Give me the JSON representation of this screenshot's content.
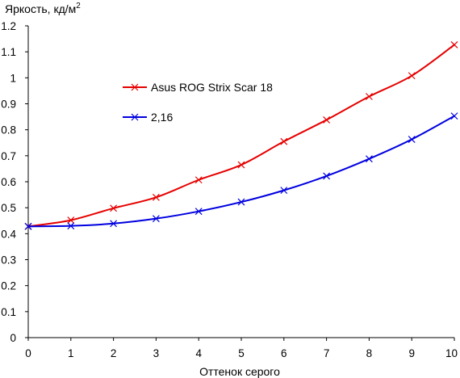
{
  "chart_data": {
    "type": "line",
    "title": "",
    "ylabel": "Яркость, кд/м",
    "ylabel_sup": "2",
    "xlabel": "Оттенок серого",
    "xlim": [
      0,
      10
    ],
    "ylim": [
      0,
      1.2
    ],
    "grid": false,
    "legend_position": "top-center",
    "x": [
      0,
      1,
      2,
      3,
      4,
      5,
      6,
      7,
      8,
      9,
      10
    ],
    "x_ticks": [
      "0",
      "1",
      "2",
      "3",
      "4",
      "5",
      "6",
      "7",
      "8",
      "9",
      "10"
    ],
    "y_ticks": [
      "0",
      "0.1",
      "0.2",
      "0.3",
      "0.4",
      "0.5",
      "0.6",
      "0.7",
      "0.8",
      "0.9",
      "1",
      "1.1",
      "1.2"
    ],
    "series": [
      {
        "name": "Asus ROG Strix Scar 18",
        "color": "#e60000",
        "marker": "x",
        "values": [
          0.428,
          0.452,
          0.498,
          0.54,
          0.607,
          0.665,
          0.755,
          0.838,
          0.928,
          1.008,
          1.127
        ]
      },
      {
        "name": "2,16",
        "color": "#0000e0",
        "marker": "x",
        "values": [
          0.428,
          0.43,
          0.439,
          0.458,
          0.486,
          0.522,
          0.567,
          0.622,
          0.688,
          0.763,
          0.853
        ]
      }
    ]
  }
}
